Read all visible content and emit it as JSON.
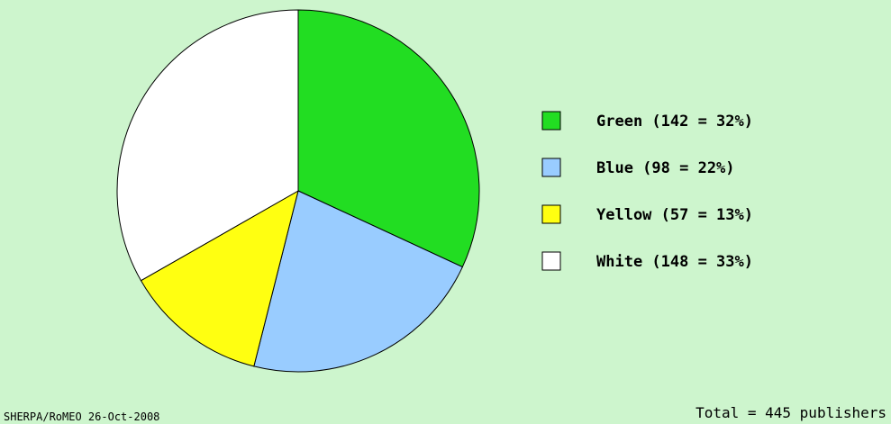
{
  "chart_data": {
    "type": "pie",
    "slices": [
      {
        "label": "Green (142 = 32%)",
        "value": 142,
        "color": "#22dd22"
      },
      {
        "label": "Blue (98 = 22%)",
        "value": 98,
        "color": "#99ccff"
      },
      {
        "label": "Yellow (57 = 13%)",
        "value": 57,
        "color": "#ffff11"
      },
      {
        "label": "White (148 = 33%)",
        "value": 148,
        "color": "#ffffff"
      }
    ],
    "total": 445,
    "legend_position": "right"
  },
  "footer": {
    "source": "SHERPA/RoMEO 26-Oct-2008",
    "total_label": "Total = 445 publishers"
  }
}
